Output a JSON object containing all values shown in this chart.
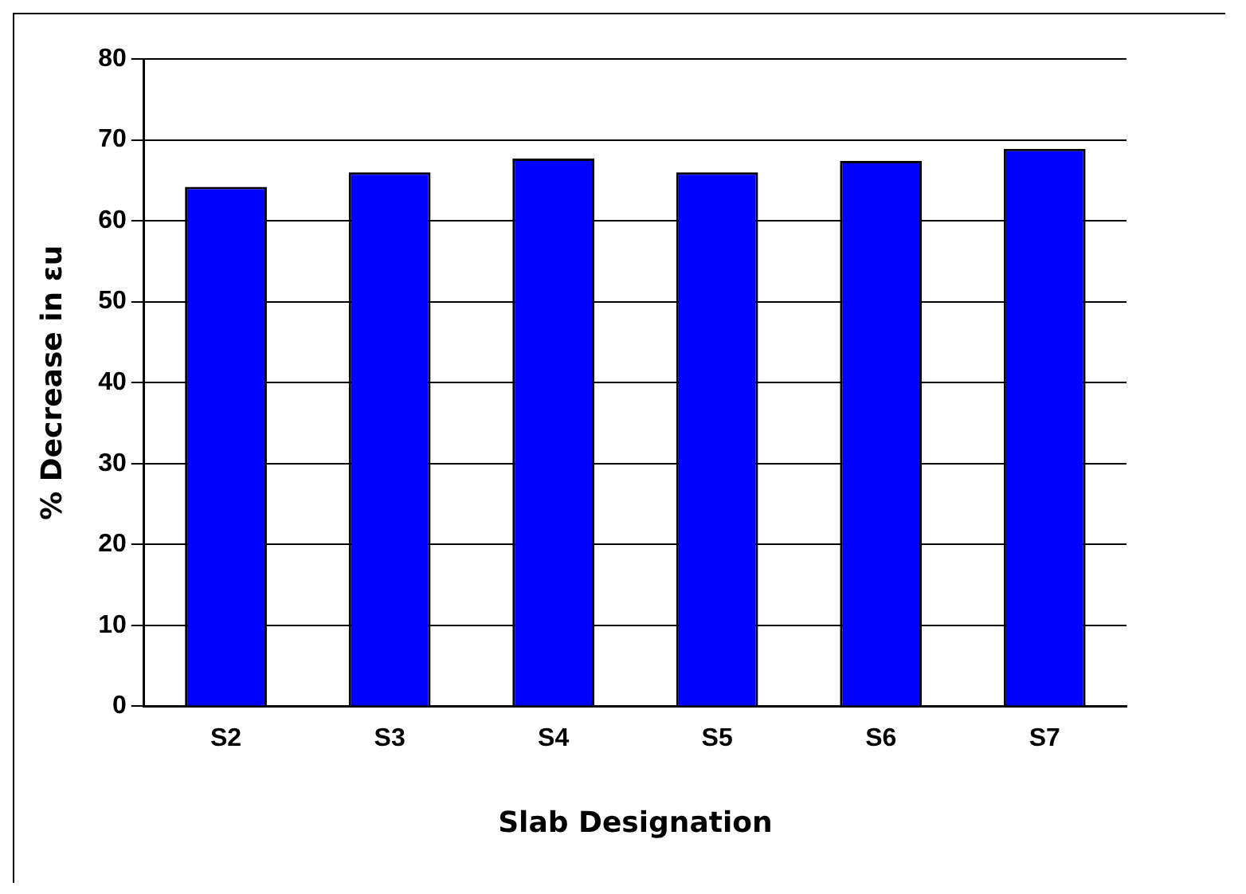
{
  "chart_data": {
    "type": "bar",
    "xlabel": "Slab Designation",
    "ylabel": "% Decrease in εu",
    "categories": [
      "S2",
      "S3",
      "S4",
      "S5",
      "S6",
      "S7"
    ],
    "series": [
      {
        "color": "#0000ff",
        "values": [
          64.2,
          66.0,
          67.7,
          66.0,
          67.4,
          68.9
        ]
      }
    ],
    "ylim": [
      0,
      80
    ],
    "yticks": [
      0,
      10,
      20,
      30,
      40,
      50,
      60,
      70,
      80
    ],
    "grid": "y",
    "legend": false
  }
}
